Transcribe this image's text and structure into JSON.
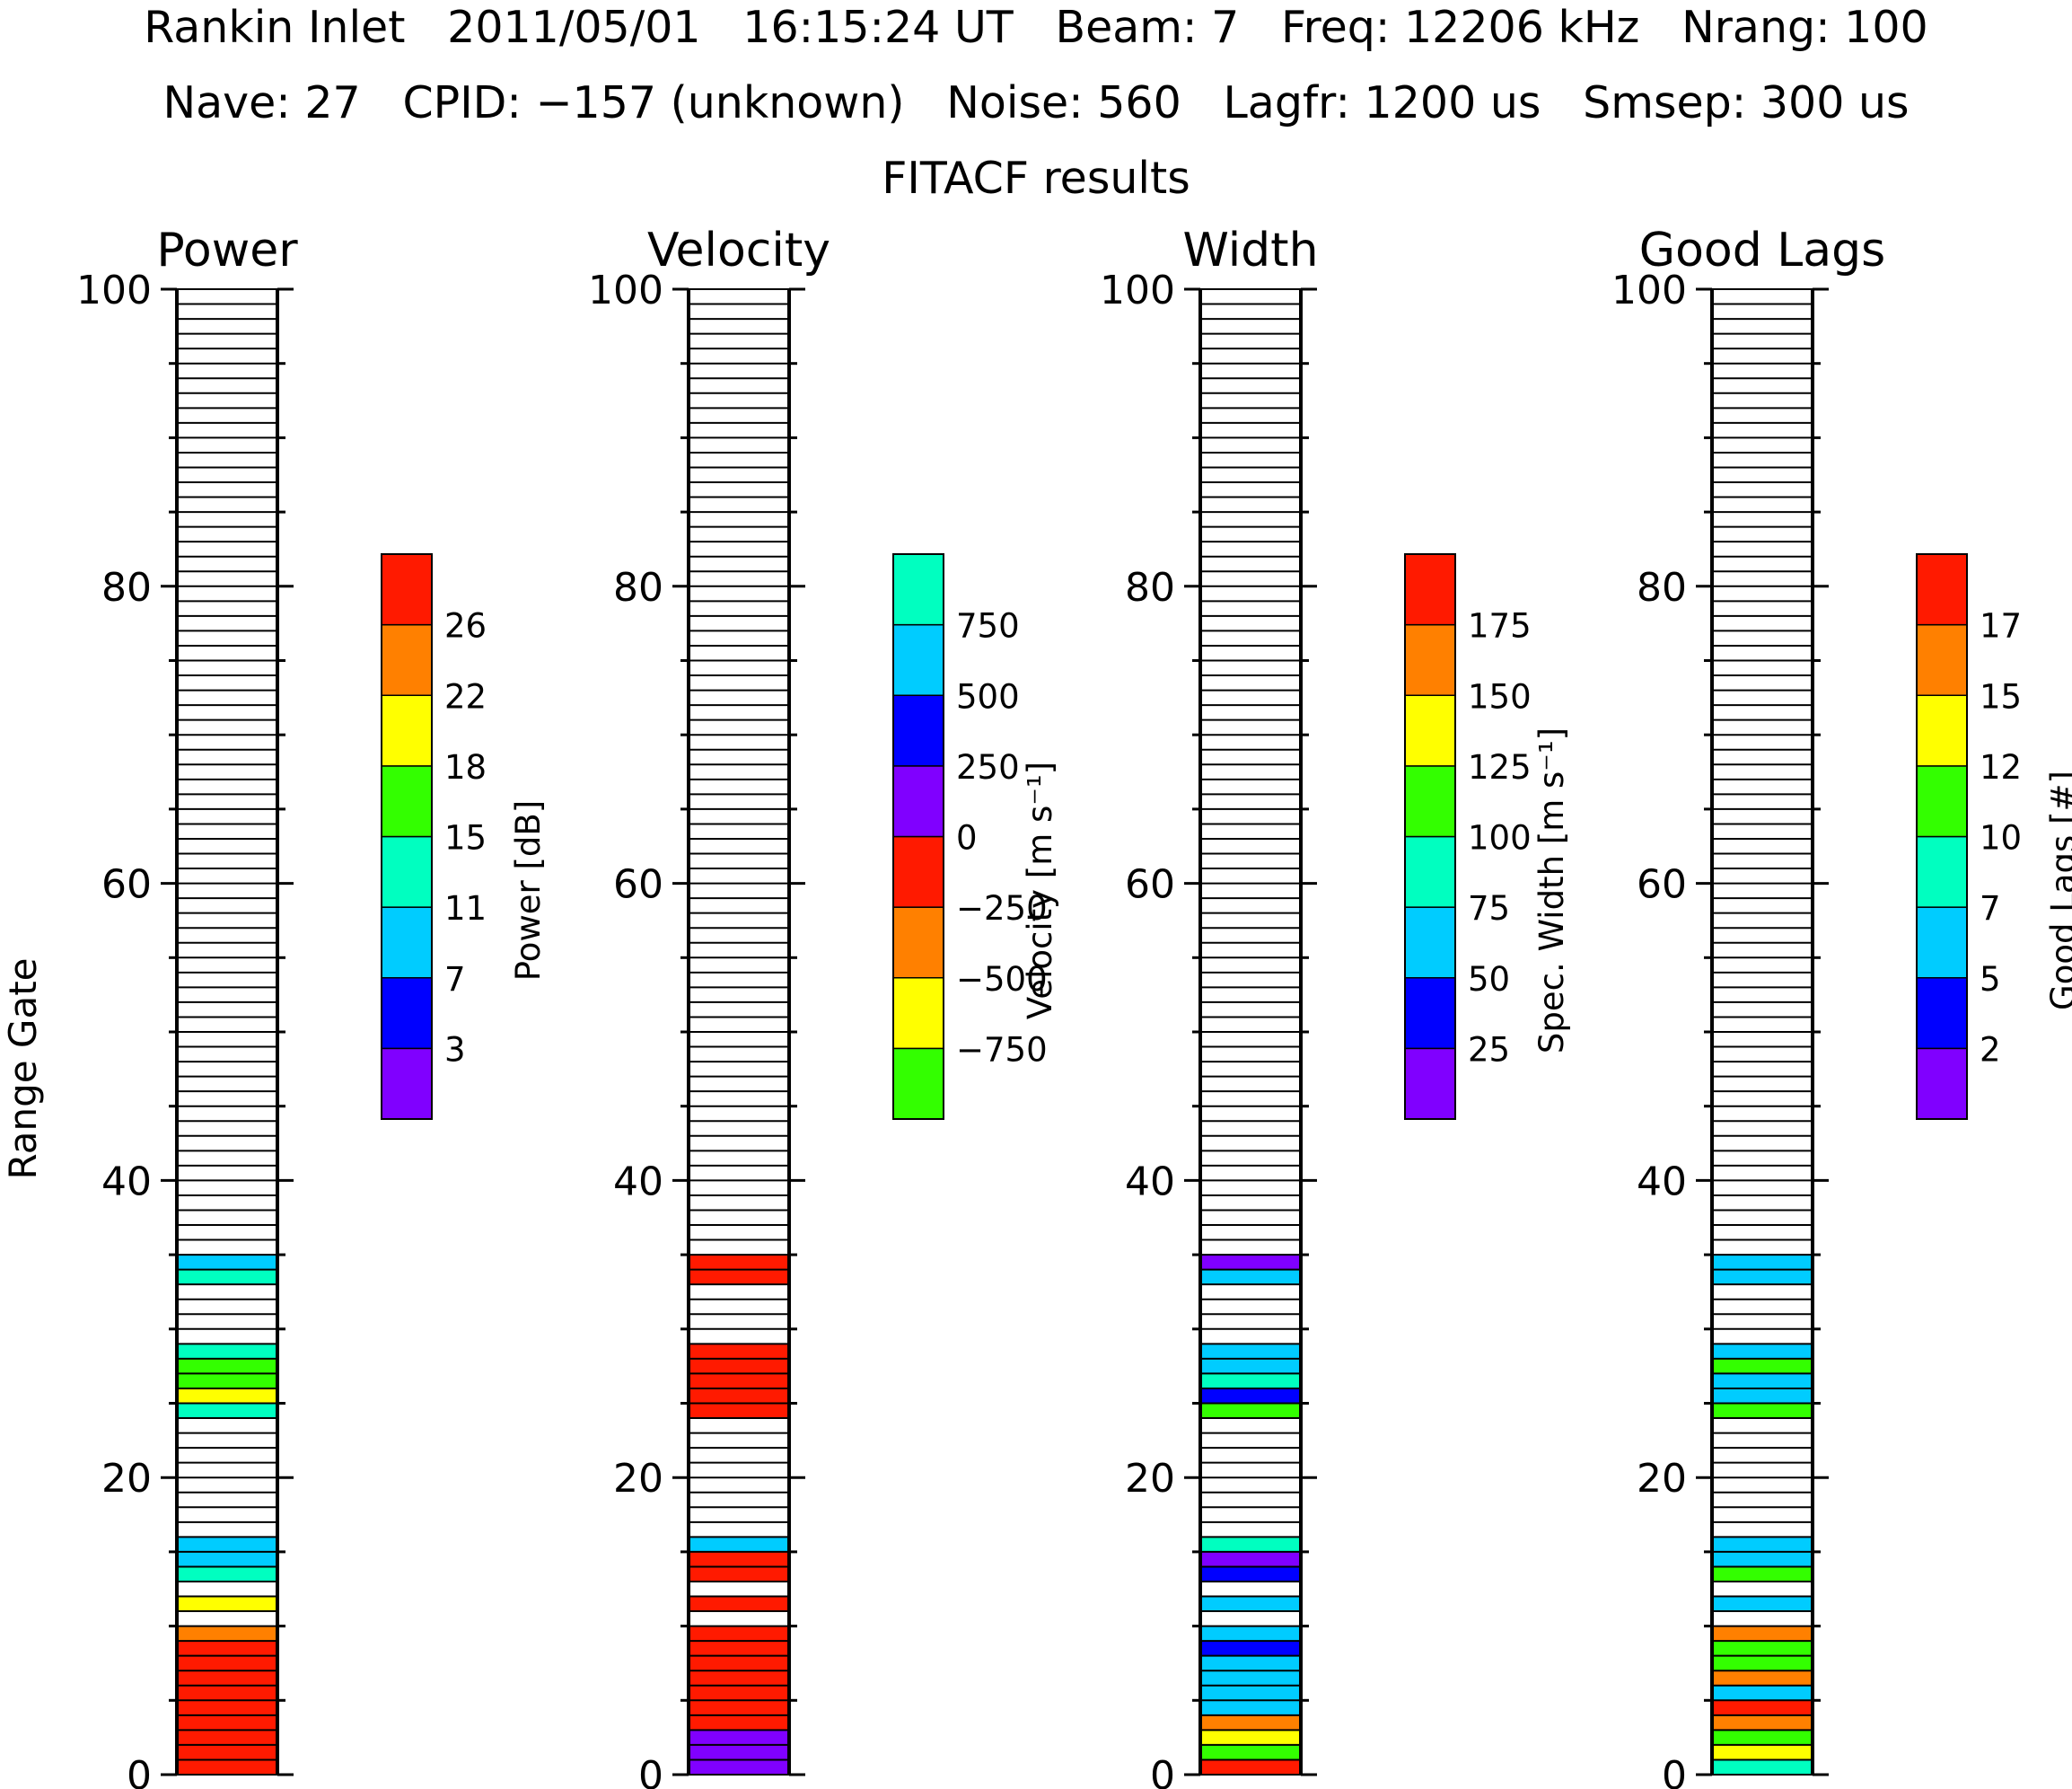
{
  "header": {
    "line1": "Rankin Inlet   2011/05/01   16:15:24 UT   Beam: 7   Freq: 12206 kHz   Nrang: 100",
    "line2": "Nave: 27   CPID: −157 (unknown)   Noise: 560   Lagfr: 1200 us   Smsep: 300 us",
    "line3": "FITACF results"
  },
  "colors": {
    "purple": "#8000ff",
    "blue": "#0000ff",
    "skyblue": "#00ccff",
    "aqua": "#00ffc0",
    "green": "#33ff00",
    "yellow": "#ffff00",
    "orange": "#ff8000",
    "red": "#ff1a00"
  },
  "chart_data": {
    "type": "heatmap",
    "ylabel": "Range Gate",
    "ylim": [
      0,
      100
    ],
    "yticks": [
      0,
      20,
      40,
      60,
      80,
      100
    ],
    "panels": [
      {
        "title": "Power",
        "colorbar": {
          "label": "Power [dB]",
          "colors": [
            "purple",
            "blue",
            "skyblue",
            "aqua",
            "green",
            "yellow",
            "orange",
            "red"
          ],
          "ticks": [
            "3",
            "7",
            "11",
            "15",
            "18",
            "22",
            "26"
          ]
        },
        "cells": [
          {
            "gate": 0,
            "color": "red"
          },
          {
            "gate": 1,
            "color": "red"
          },
          {
            "gate": 2,
            "color": "red"
          },
          {
            "gate": 3,
            "color": "red"
          },
          {
            "gate": 4,
            "color": "red"
          },
          {
            "gate": 5,
            "color": "red"
          },
          {
            "gate": 6,
            "color": "red"
          },
          {
            "gate": 7,
            "color": "red"
          },
          {
            "gate": 8,
            "color": "red"
          },
          {
            "gate": 9,
            "color": "orange"
          },
          {
            "gate": 11,
            "color": "yellow"
          },
          {
            "gate": 13,
            "color": "aqua"
          },
          {
            "gate": 14,
            "color": "skyblue"
          },
          {
            "gate": 15,
            "color": "skyblue"
          },
          {
            "gate": 24,
            "color": "aqua"
          },
          {
            "gate": 25,
            "color": "yellow"
          },
          {
            "gate": 26,
            "color": "green"
          },
          {
            "gate": 27,
            "color": "green"
          },
          {
            "gate": 28,
            "color": "aqua"
          },
          {
            "gate": 33,
            "color": "aqua"
          },
          {
            "gate": 34,
            "color": "skyblue"
          }
        ]
      },
      {
        "title": "Velocity",
        "colorbar": {
          "label": "Velocity [m s⁻¹]",
          "colors": [
            "green",
            "yellow",
            "orange",
            "red",
            "purple",
            "blue",
            "skyblue",
            "aqua"
          ],
          "ticks": [
            "−750",
            "−500",
            "−250",
            "0",
            "250",
            "500",
            "750"
          ]
        },
        "cells": [
          {
            "gate": 0,
            "color": "purple"
          },
          {
            "gate": 1,
            "color": "purple"
          },
          {
            "gate": 2,
            "color": "purple"
          },
          {
            "gate": 3,
            "color": "red"
          },
          {
            "gate": 4,
            "color": "red"
          },
          {
            "gate": 5,
            "color": "red"
          },
          {
            "gate": 6,
            "color": "red"
          },
          {
            "gate": 7,
            "color": "red"
          },
          {
            "gate": 8,
            "color": "red"
          },
          {
            "gate": 9,
            "color": "red"
          },
          {
            "gate": 11,
            "color": "red"
          },
          {
            "gate": 13,
            "color": "red"
          },
          {
            "gate": 14,
            "color": "red"
          },
          {
            "gate": 15,
            "color": "skyblue"
          },
          {
            "gate": 24,
            "color": "red"
          },
          {
            "gate": 25,
            "color": "red"
          },
          {
            "gate": 26,
            "color": "red"
          },
          {
            "gate": 27,
            "color": "red"
          },
          {
            "gate": 28,
            "color": "red"
          },
          {
            "gate": 33,
            "color": "red"
          },
          {
            "gate": 34,
            "color": "red"
          }
        ]
      },
      {
        "title": "Width",
        "colorbar": {
          "label": "Spec. Width [m s⁻¹]",
          "colors": [
            "purple",
            "blue",
            "skyblue",
            "aqua",
            "green",
            "yellow",
            "orange",
            "red"
          ],
          "ticks": [
            "25",
            "50",
            "75",
            "100",
            "125",
            "150",
            "175"
          ]
        },
        "cells": [
          {
            "gate": 0,
            "color": "red"
          },
          {
            "gate": 1,
            "color": "green"
          },
          {
            "gate": 2,
            "color": "yellow"
          },
          {
            "gate": 3,
            "color": "orange"
          },
          {
            "gate": 4,
            "color": "skyblue"
          },
          {
            "gate": 5,
            "color": "skyblue"
          },
          {
            "gate": 6,
            "color": "skyblue"
          },
          {
            "gate": 7,
            "color": "skyblue"
          },
          {
            "gate": 8,
            "color": "blue"
          },
          {
            "gate": 9,
            "color": "skyblue"
          },
          {
            "gate": 11,
            "color": "skyblue"
          },
          {
            "gate": 13,
            "color": "blue"
          },
          {
            "gate": 14,
            "color": "purple"
          },
          {
            "gate": 15,
            "color": "aqua"
          },
          {
            "gate": 24,
            "color": "green"
          },
          {
            "gate": 25,
            "color": "blue"
          },
          {
            "gate": 26,
            "color": "aqua"
          },
          {
            "gate": 27,
            "color": "skyblue"
          },
          {
            "gate": 28,
            "color": "skyblue"
          },
          {
            "gate": 33,
            "color": "skyblue"
          },
          {
            "gate": 34,
            "color": "purple"
          }
        ]
      },
      {
        "title": "Good Lags",
        "colorbar": {
          "label": "Good Lags [#]",
          "colors": [
            "purple",
            "blue",
            "skyblue",
            "aqua",
            "green",
            "yellow",
            "orange",
            "red"
          ],
          "ticks": [
            "2",
            "5",
            "7",
            "10",
            "12",
            "15",
            "17"
          ]
        },
        "cells": [
          {
            "gate": 0,
            "color": "aqua"
          },
          {
            "gate": 1,
            "color": "yellow"
          },
          {
            "gate": 2,
            "color": "green"
          },
          {
            "gate": 3,
            "color": "orange"
          },
          {
            "gate": 4,
            "color": "red"
          },
          {
            "gate": 5,
            "color": "skyblue"
          },
          {
            "gate": 6,
            "color": "orange"
          },
          {
            "gate": 7,
            "color": "green"
          },
          {
            "gate": 8,
            "color": "green"
          },
          {
            "gate": 9,
            "color": "orange"
          },
          {
            "gate": 11,
            "color": "skyblue"
          },
          {
            "gate": 13,
            "color": "green"
          },
          {
            "gate": 14,
            "color": "skyblue"
          },
          {
            "gate": 15,
            "color": "skyblue"
          },
          {
            "gate": 24,
            "color": "green"
          },
          {
            "gate": 25,
            "color": "skyblue"
          },
          {
            "gate": 26,
            "color": "skyblue"
          },
          {
            "gate": 27,
            "color": "green"
          },
          {
            "gate": 28,
            "color": "skyblue"
          },
          {
            "gate": 33,
            "color": "skyblue"
          },
          {
            "gate": 34,
            "color": "skyblue"
          }
        ]
      }
    ]
  }
}
